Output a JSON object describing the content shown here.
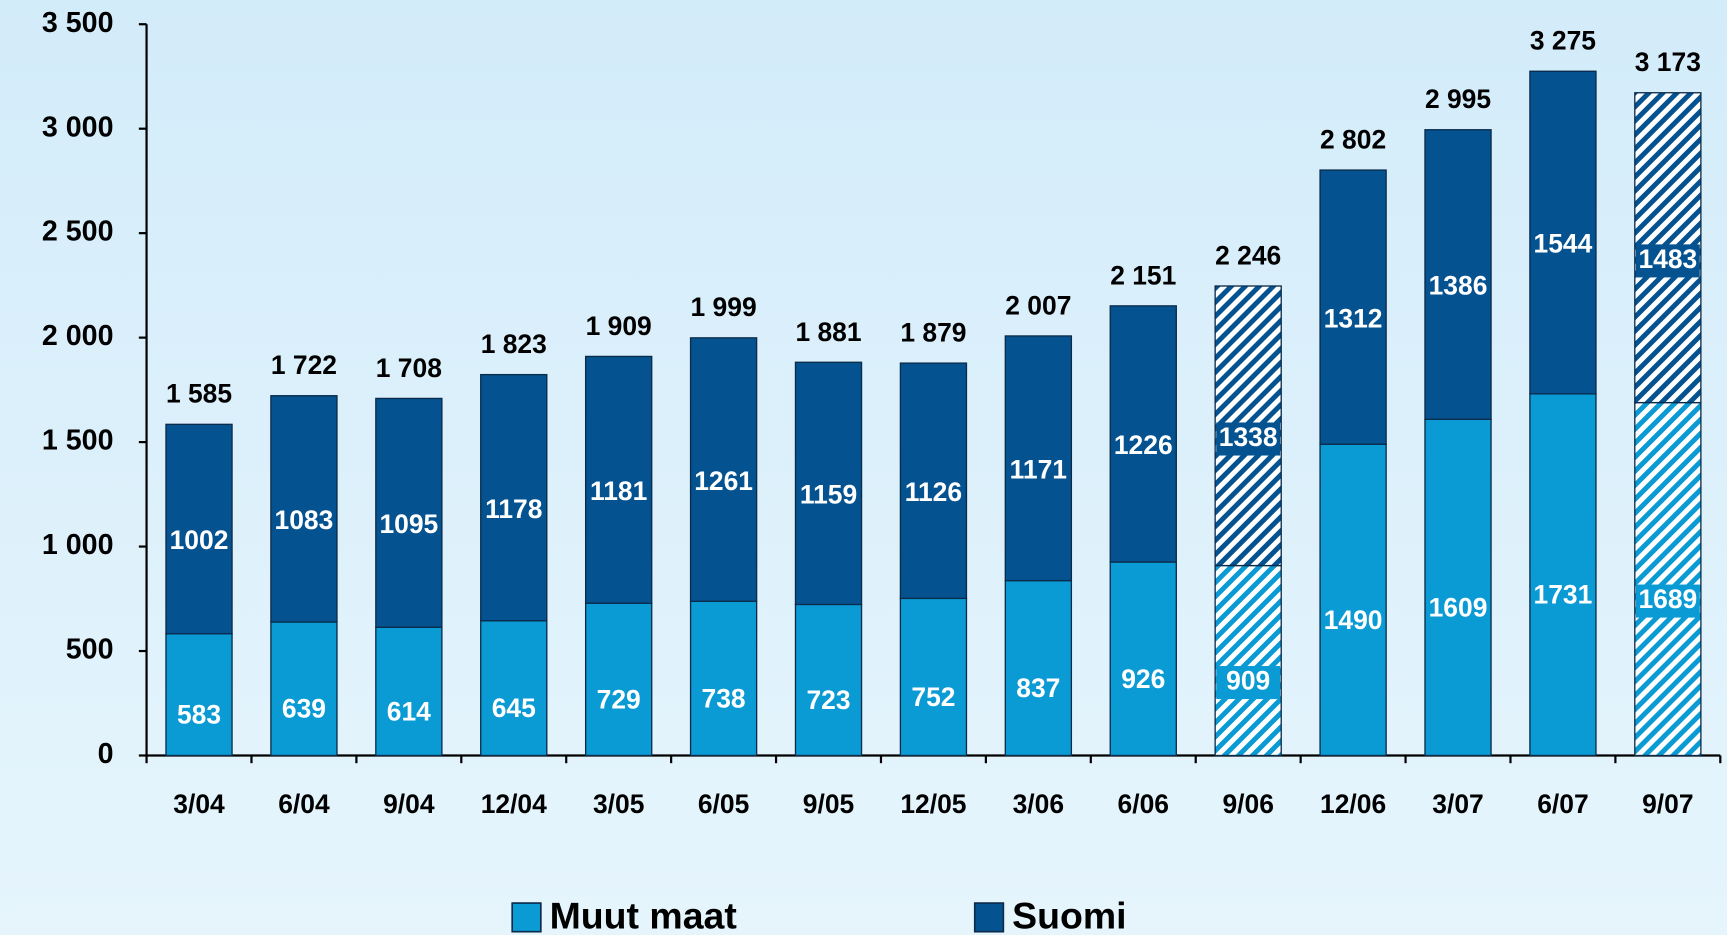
{
  "chart_data": {
    "type": "stacked_bar",
    "categories": [
      "3/04",
      "6/04",
      "9/04",
      "12/04",
      "3/05",
      "6/05",
      "9/05",
      "12/05",
      "3/06",
      "6/06",
      "9/06",
      "12/06",
      "3/07",
      "6/07",
      "9/07"
    ],
    "series": [
      {
        "name": "Muut maat",
        "color": "#0a9ad4",
        "values": [
          583,
          639,
          614,
          645,
          729,
          738,
          723,
          752,
          837,
          926,
          909,
          1490,
          1609,
          1731,
          1689
        ]
      },
      {
        "name": "Suomi",
        "color": "#04528f",
        "values": [
          1002,
          1083,
          1095,
          1178,
          1181,
          1261,
          1159,
          1126,
          1171,
          1226,
          1338,
          1312,
          1386,
          1544,
          1483
        ]
      }
    ],
    "totals": {
      "values": [
        1585,
        1722,
        1708,
        1823,
        1909,
        1999,
        1881,
        1879,
        2007,
        2151,
        2246,
        2802,
        2995,
        3275,
        3173
      ],
      "value_labels": [
        "1 585",
        "1 722",
        "1 708",
        "1 823",
        "1 909",
        "1 999",
        "1 881",
        "1 879",
        "2 007",
        "2 151",
        "2 246",
        "2 802",
        "2 995",
        "3 275",
        "3 173"
      ]
    },
    "hatched_categories": [
      "9/06",
      "9/07"
    ],
    "ylim": [
      0,
      3500
    ],
    "yticks": [
      0,
      500,
      {
        "value": 1000,
        "label": "1 000"
      },
      {
        "value": 1500,
        "label": "1 500"
      },
      {
        "value": 2000,
        "label": "2 000"
      },
      {
        "value": 2500,
        "label": "2 500"
      },
      {
        "value": 3000,
        "label": "3 000"
      },
      {
        "value": 3500,
        "label": "3 500"
      }
    ],
    "legend": "bottom"
  }
}
